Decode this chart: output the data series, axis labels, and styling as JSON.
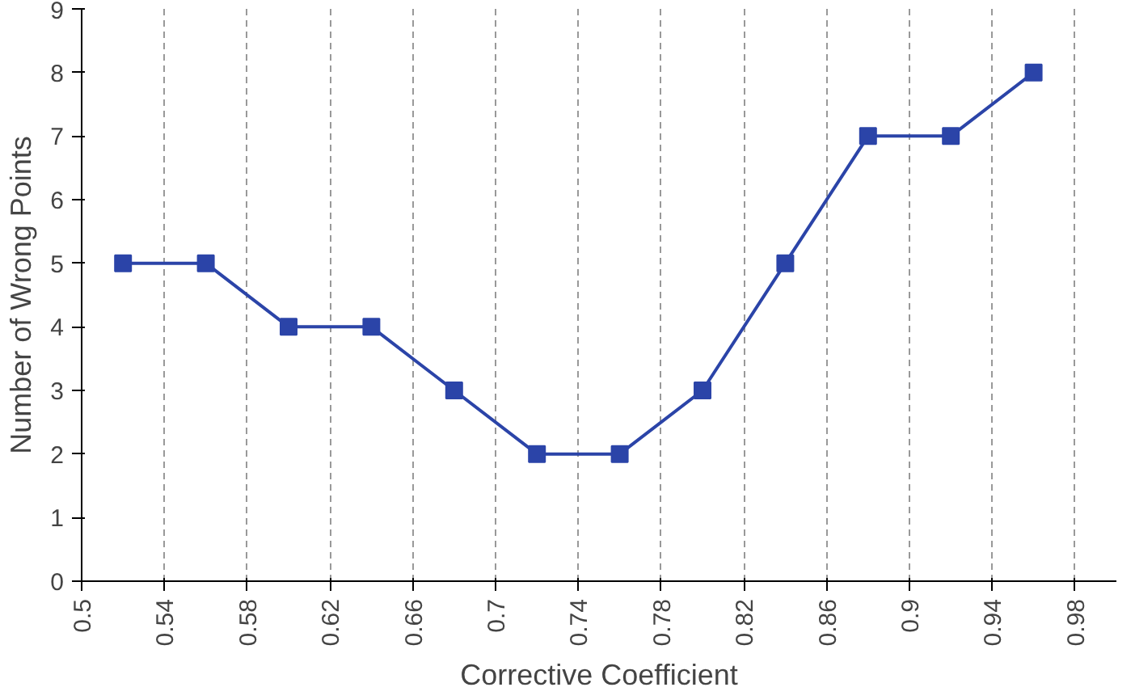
{
  "chart_data": {
    "type": "line",
    "xlabel": "Corrective Coefficient",
    "ylabel": "Number of Wrong Points",
    "x": [
      0.52,
      0.56,
      0.6,
      0.64,
      0.68,
      0.72,
      0.76,
      0.8,
      0.84,
      0.88,
      0.92,
      0.96
    ],
    "series": [
      {
        "color": "#2b44a8",
        "values": [
          5,
          5,
          4,
          4,
          3,
          2,
          2,
          3,
          5,
          7,
          7,
          8
        ]
      }
    ],
    "xlim": [
      0.5,
      1.0
    ],
    "xticks": [
      0.5,
      0.54,
      0.58,
      0.62,
      0.66,
      0.7,
      0.74,
      0.78,
      0.82,
      0.86,
      0.9,
      0.94,
      0.98
    ],
    "ylim": [
      0,
      9
    ],
    "yticks": [
      0,
      1,
      2,
      3,
      4,
      5,
      6,
      7,
      8,
      9
    ],
    "grid": "x",
    "marker": "square",
    "line_style": "solid"
  }
}
